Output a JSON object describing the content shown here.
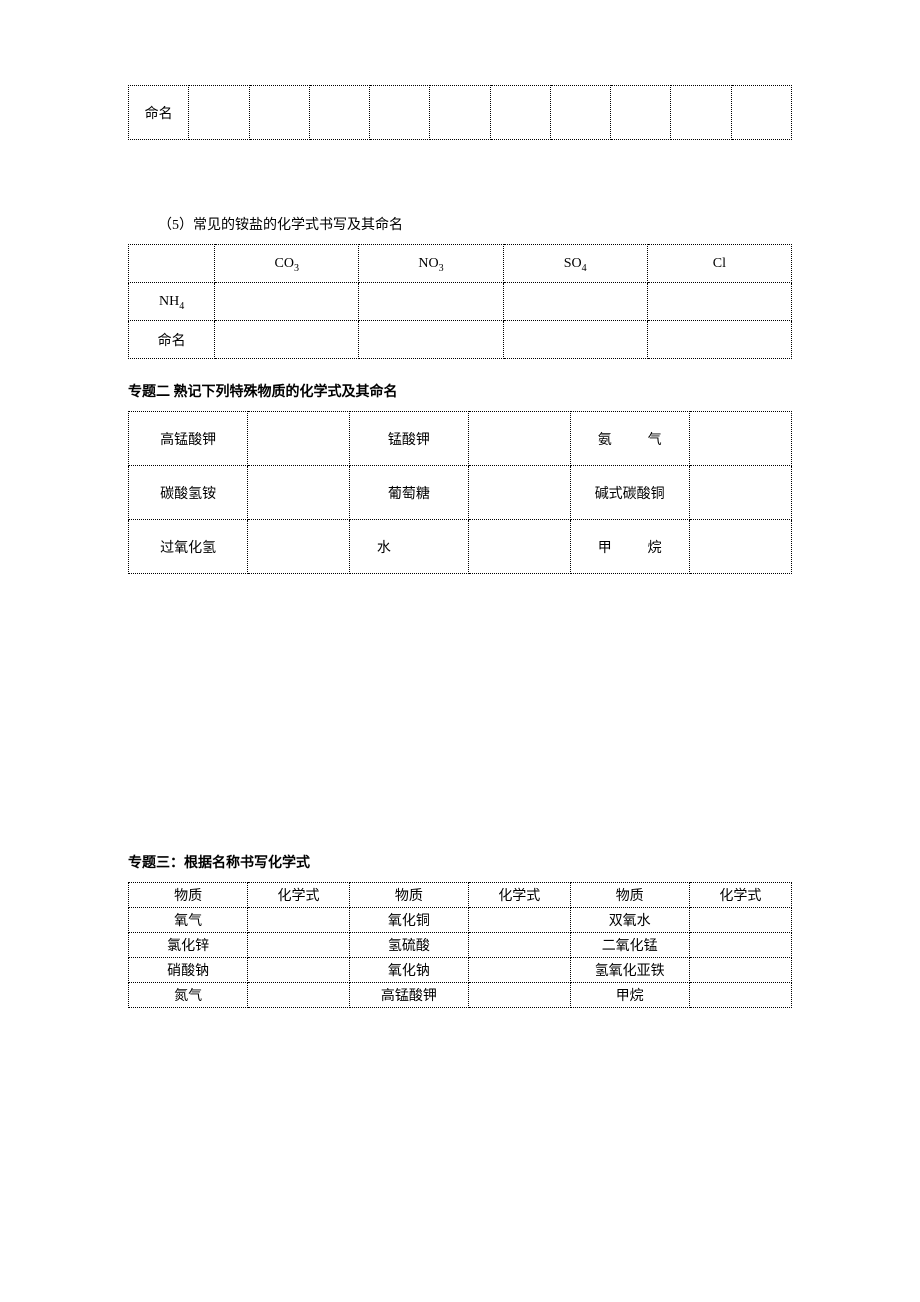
{
  "table1": {
    "row_label": "命名"
  },
  "section5": {
    "heading": "（5）常见的铵盐的化学式书写及其命名",
    "col_headers_html": [
      "CO<sub>3</sub>",
      "NO<sub>3</sub>",
      "SO<sub>4</sub>",
      "Cl"
    ],
    "row1_label_html": "NH<sub>4</sub>",
    "row2_label": "命名"
  },
  "topic2": {
    "heading": "专题二 熟记下列特殊物质的化学式及其命名",
    "rows": [
      [
        "高锰酸钾",
        "锰酸钾",
        "氨气"
      ],
      [
        "碳酸氢铵",
        "葡萄糖",
        "碱式碳酸铜"
      ],
      [
        "过氧化氢",
        "水",
        "甲烷"
      ]
    ],
    "spaced": {
      "0_2": true,
      "2_1": true,
      "2_2": true
    }
  },
  "topic3": {
    "heading": "专题三：根据名称书写化学式",
    "headers": [
      "物质",
      "化学式",
      "物质",
      "化学式",
      "物质",
      "化学式"
    ],
    "rows": [
      [
        "氧气",
        "",
        "氧化铜",
        "",
        "双氧水",
        ""
      ],
      [
        "氯化锌",
        "",
        "氢硫酸",
        "",
        "二氧化锰",
        ""
      ],
      [
        "硝酸钠",
        "",
        "氧化钠",
        "",
        "氢氧化亚铁",
        ""
      ],
      [
        "氮气",
        "",
        "高锰酸钾",
        "",
        "甲烷",
        ""
      ]
    ]
  }
}
